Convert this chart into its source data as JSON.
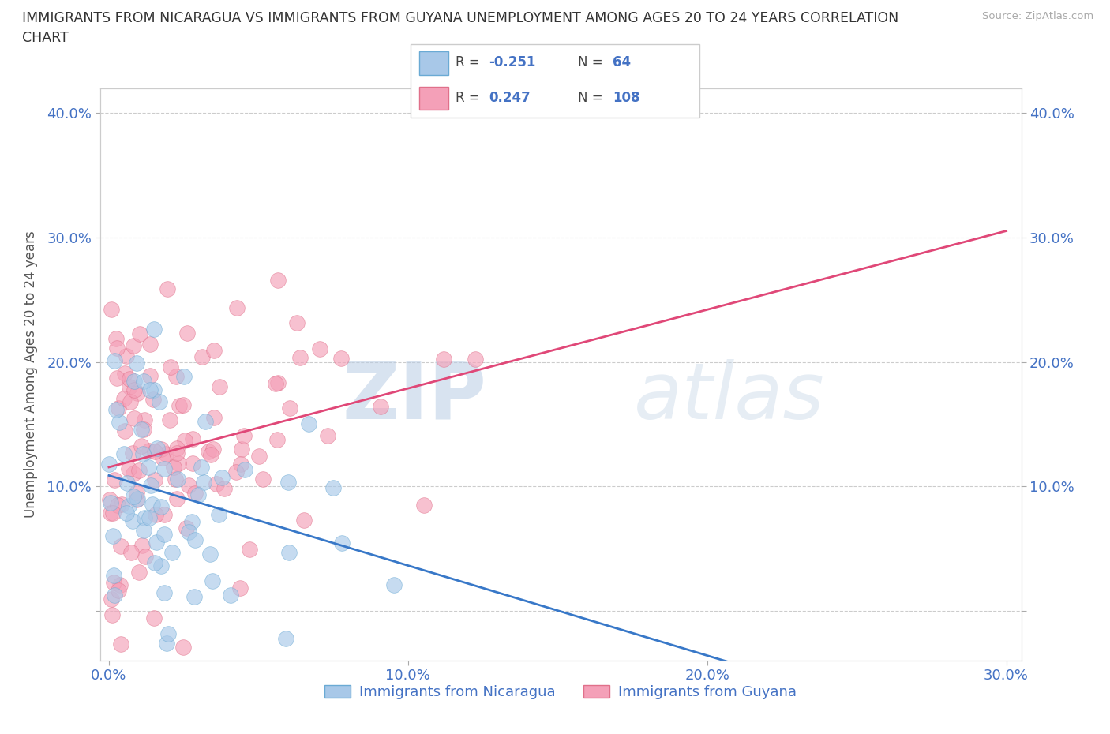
{
  "title_line1": "IMMIGRANTS FROM NICARAGUA VS IMMIGRANTS FROM GUYANA UNEMPLOYMENT AMONG AGES 20 TO 24 YEARS CORRELATION",
  "title_line2": "CHART",
  "source": "Source: ZipAtlas.com",
  "ylabel": "Unemployment Among Ages 20 to 24 years",
  "xlim": [
    -0.003,
    0.305
  ],
  "ylim": [
    -0.04,
    0.42
  ],
  "xticks": [
    0.0,
    0.1,
    0.2,
    0.3
  ],
  "xticklabels": [
    "0.0%",
    "10.0%",
    "20.0%",
    "30.0%"
  ],
  "yticks": [
    0.0,
    0.1,
    0.2,
    0.3,
    0.4
  ],
  "yticklabels": [
    "",
    "10.0%",
    "20.0%",
    "30.0%",
    "40.0%"
  ],
  "nicaragua_color": "#a8c8e8",
  "nicaragua_edge": "#6aaad4",
  "guyana_color": "#f4a0b8",
  "guyana_edge": "#e0708a",
  "line_nicaragua_color": "#3878c8",
  "line_guyana_color": "#e04878",
  "R_nicaragua": -0.251,
  "N_nicaragua": 64,
  "R_guyana": 0.247,
  "N_guyana": 108,
  "legend_label_nicaragua": "Immigrants from Nicaragua",
  "legend_label_guyana": "Immigrants from Guyana",
  "watermark_zip": "ZIP",
  "watermark_atlas": "atlas",
  "grid_color": "#cccccc",
  "background_color": "#ffffff",
  "title_color": "#333333",
  "axis_label_color": "#555555",
  "tick_label_color": "#4472c4",
  "legend_r_color": "#4472c4",
  "legend_n_color": "#4472c4"
}
